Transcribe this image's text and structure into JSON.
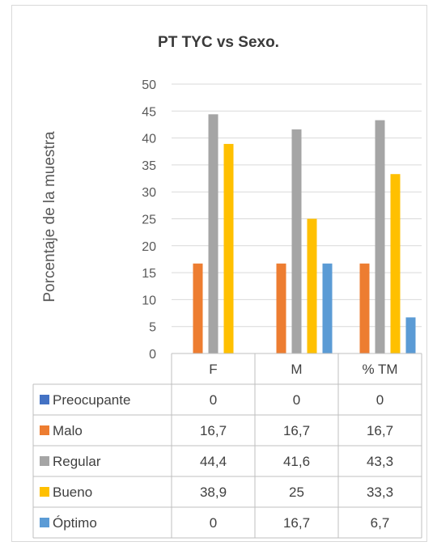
{
  "chart_data": {
    "type": "bar",
    "title": "PT TYC vs Sexo.",
    "ylabel": "Porcentaje de la muestra",
    "categories": [
      "F",
      "M",
      "% TM"
    ],
    "ylim": [
      0,
      50
    ],
    "yticks": [
      0,
      5,
      10,
      15,
      20,
      25,
      30,
      35,
      40,
      45,
      50
    ],
    "grid": true,
    "legend": "data-table",
    "series": [
      {
        "name": "Preocupante",
        "color": "#4472c4",
        "values": [
          0,
          0,
          0
        ],
        "labels": [
          "0",
          "0",
          "0"
        ]
      },
      {
        "name": "Malo",
        "color": "#ed7d31",
        "values": [
          16.7,
          16.7,
          16.7
        ],
        "labels": [
          "16,7",
          "16,7",
          "16,7"
        ]
      },
      {
        "name": "Regular",
        "color": "#a5a5a5",
        "values": [
          44.4,
          41.6,
          43.3
        ],
        "labels": [
          "44,4",
          "41,6",
          "43,3"
        ]
      },
      {
        "name": "Bueno",
        "color": "#ffc000",
        "values": [
          38.9,
          25,
          33.3
        ],
        "labels": [
          "38,9",
          "25",
          "33,3"
        ]
      },
      {
        "name": "Óptimo",
        "color": "#5b9bd5",
        "values": [
          0,
          16.7,
          6.7
        ],
        "labels": [
          "0",
          "16,7",
          "6,7"
        ]
      }
    ]
  }
}
